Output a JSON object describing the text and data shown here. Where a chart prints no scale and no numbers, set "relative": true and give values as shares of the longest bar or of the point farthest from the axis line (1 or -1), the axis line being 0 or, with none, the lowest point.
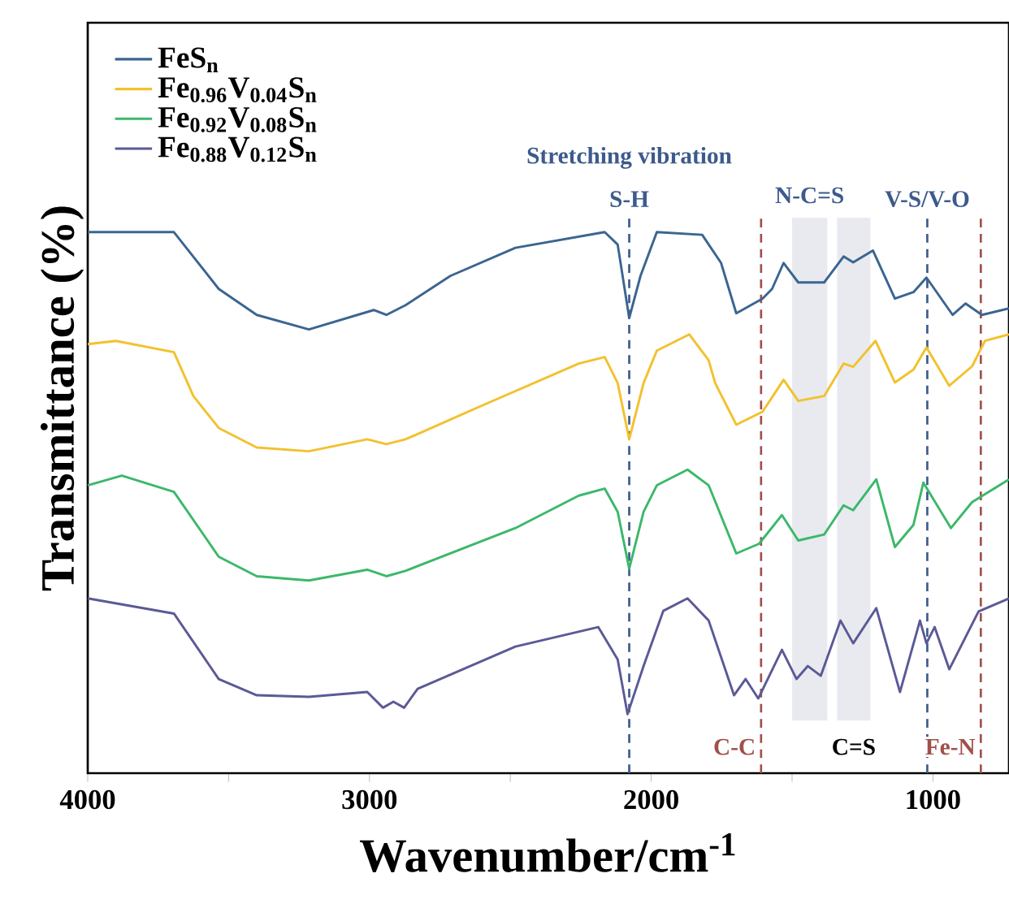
{
  "chart_data": {
    "type": "line",
    "relative": true,
    "xlabel": "Wavenumber/cm$^{-1}$",
    "ylabel": "Transmittance (%)",
    "xlim": [
      4000,
      730
    ],
    "xticks": [
      4000,
      {
        "value": 3500,
        "label": null
      },
      3000,
      {
        "value": 2500,
        "label": null
      },
      2000,
      {
        "value": 1500,
        "label": null
      },
      1000
    ],
    "legend": "top left",
    "line_style": "solid",
    "marker": "none",
    "annotations": [
      "Stretching vibration"
    ],
    "series": [
      {
        "name": "FeS$_{n}$",
        "color": "#3b6591",
        "x": [
          4000,
          3694,
          3535,
          3400,
          3215,
          2985,
          2940,
          2872,
          2713,
          2482,
          2165,
          2119,
          2078,
          2038,
          1980,
          1819,
          1752,
          1698,
          1605,
          1571,
          1530,
          1478,
          1386,
          1317,
          1283,
          1213,
          1135,
          1069,
          1023,
          930,
          884,
          826,
          730
        ],
        "values": [
          1.0,
          1.0,
          0.895,
          0.847,
          0.82,
          0.856,
          0.847,
          0.865,
          0.919,
          0.971,
          1.0,
          0.977,
          0.841,
          0.919,
          1.0,
          0.995,
          0.943,
          0.85,
          0.877,
          0.895,
          0.943,
          0.907,
          0.907,
          0.955,
          0.944,
          0.966,
          0.877,
          0.889,
          0.916,
          0.847,
          0.868,
          0.847,
          0.859
        ]
      },
      {
        "name": "Fe$_{0.96}$V$_{0.04}$S$_{n}$",
        "color": "#f2c12e",
        "x": [
          4000,
          3900,
          3694,
          3625,
          3535,
          3400,
          3215,
          3008,
          2940,
          2872,
          2598,
          2257,
          2165,
          2119,
          2078,
          2027,
          1980,
          1865,
          1796,
          1773,
          1698,
          1605,
          1530,
          1478,
          1386,
          1317,
          1283,
          1204,
          1135,
          1069,
          1023,
          942,
          861,
          815,
          730
        ],
        "values": [
          0.793,
          0.799,
          0.778,
          0.697,
          0.638,
          0.602,
          0.595,
          0.617,
          0.608,
          0.617,
          0.68,
          0.757,
          0.769,
          0.721,
          0.617,
          0.721,
          0.781,
          0.811,
          0.763,
          0.721,
          0.644,
          0.668,
          0.727,
          0.688,
          0.697,
          0.757,
          0.751,
          0.799,
          0.722,
          0.746,
          0.787,
          0.716,
          0.752,
          0.799,
          0.811
        ]
      },
      {
        "name": "Fe$_{0.92}$V$_{0.08}$S$_{n}$",
        "color": "#3cb86a",
        "x": [
          4000,
          3879,
          3694,
          3535,
          3400,
          3215,
          3008,
          2940,
          2872,
          2482,
          2257,
          2165,
          2119,
          2078,
          2027,
          1980,
          1871,
          1796,
          1698,
          1617,
          1536,
          1478,
          1386,
          1317,
          1283,
          1201,
          1135,
          1069,
          1034,
          936,
          861,
          730
        ],
        "values": [
          0.532,
          0.55,
          0.52,
          0.4,
          0.364,
          0.356,
          0.376,
          0.364,
          0.374,
          0.453,
          0.513,
          0.526,
          0.483,
          0.378,
          0.483,
          0.532,
          0.561,
          0.532,
          0.406,
          0.424,
          0.477,
          0.43,
          0.441,
          0.495,
          0.486,
          0.543,
          0.418,
          0.459,
          0.537,
          0.453,
          0.501,
          0.543
        ]
      },
      {
        "name": "Fe$_{0.88}$V$_{0.12}$S$_{n}$",
        "color": "#5b5a96",
        "x": [
          4000,
          3694,
          3535,
          3400,
          3215,
          3008,
          2952,
          2915,
          2877,
          2829,
          2482,
          2188,
          2119,
          2084,
          2027,
          1957,
          1871,
          1796,
          1706,
          1665,
          1620,
          1536,
          1484,
          1444,
          1398,
          1328,
          1283,
          1201,
          1117,
          1046,
          1023,
          994,
          942,
          838,
          730
        ],
        "values": [
          0.323,
          0.295,
          0.174,
          0.144,
          0.141,
          0.15,
          0.121,
          0.132,
          0.121,
          0.156,
          0.234,
          0.27,
          0.21,
          0.109,
          0.198,
          0.3,
          0.323,
          0.282,
          0.144,
          0.174,
          0.138,
          0.228,
          0.174,
          0.198,
          0.18,
          0.282,
          0.24,
          0.305,
          0.15,
          0.282,
          0.24,
          0.27,
          0.192,
          0.299,
          0.323
        ]
      }
    ],
    "ref_lines": [
      {
        "axis": "x",
        "value": 2078,
        "label": "S-H",
        "color": "#3c5a8c",
        "line_style": "dashed"
      },
      {
        "axis": "x",
        "value": 1610,
        "label": "C-C",
        "color": "#a0504a",
        "line_style": "dashed"
      },
      {
        "axis": "x",
        "value": 1020,
        "label": "V-S/V-O",
        "color": "#3c5a8c",
        "line_style": "dashed"
      },
      {
        "axis": "x",
        "value": 830,
        "label": "Fe-N",
        "color": "#a0504a",
        "line_style": "dashed"
      }
    ],
    "bands": [
      {
        "axis": "x",
        "from": 1500,
        "to": 1375,
        "label": "N-C=S",
        "color": "#e8eaf0"
      },
      {
        "axis": "x",
        "from": 1340,
        "to": 1222,
        "label": "C=S",
        "color": "#e8eaf0"
      }
    ]
  }
}
